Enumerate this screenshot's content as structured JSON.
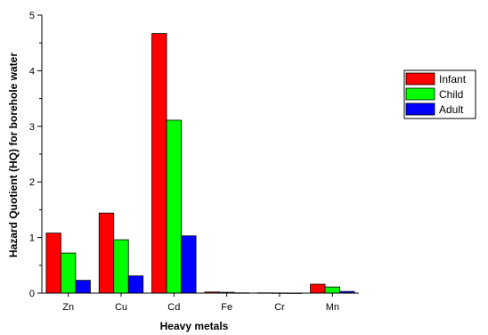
{
  "chart_data": {
    "type": "bar",
    "title": "",
    "xlabel": "Heavy metals",
    "ylabel": "Hazard Quotient (HQ) for borehole water",
    "categories": [
      "Zn",
      "Cu",
      "Cd",
      "Fe",
      "Cr",
      "Mn"
    ],
    "ylim": [
      0,
      5
    ],
    "yticks": [
      0,
      1,
      2,
      3,
      4,
      5
    ],
    "grid": false,
    "legend_position": "right",
    "series": [
      {
        "name": "Infant",
        "color": "#ff0000",
        "values": [
          1.08,
          1.44,
          4.67,
          0.02,
          0.005,
          0.16
        ]
      },
      {
        "name": "Child",
        "color": "#00ff00",
        "values": [
          0.72,
          0.96,
          3.11,
          0.015,
          0.003,
          0.11
        ]
      },
      {
        "name": "Adult",
        "color": "#0000ff",
        "values": [
          0.23,
          0.31,
          1.03,
          0.005,
          0.001,
          0.03
        ]
      }
    ]
  }
}
